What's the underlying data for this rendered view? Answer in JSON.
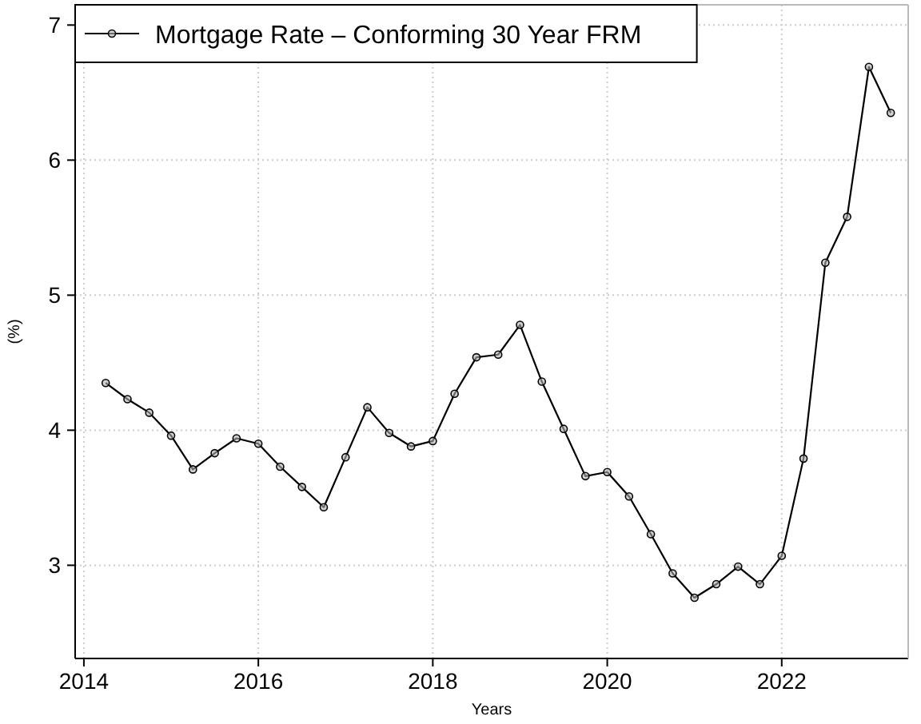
{
  "chart_data": {
    "type": "line",
    "xlabel": "Years",
    "ylabel": "(%)",
    "x": [
      2014.25,
      2014.5,
      2014.75,
      2015,
      2015.25,
      2015.5,
      2015.75,
      2016,
      2016.25,
      2016.5,
      2016.75,
      2017,
      2017.25,
      2017.5,
      2017.75,
      2018,
      2018.25,
      2018.5,
      2018.75,
      2019,
      2019.25,
      2019.5,
      2019.75,
      2020,
      2020.25,
      2020.5,
      2020.75,
      2021,
      2021.25,
      2021.5,
      2021.75,
      2022,
      2022.25,
      2022.5,
      2022.75,
      2023,
      2023.25
    ],
    "series": [
      {
        "name": "Mortgage Rate – Conforming 30 Year FRM",
        "color": "#000000",
        "values": [
          4.35,
          4.23,
          4.13,
          3.96,
          3.71,
          3.83,
          3.94,
          3.9,
          3.73,
          3.58,
          3.43,
          3.8,
          4.17,
          3.98,
          3.88,
          3.92,
          4.27,
          4.54,
          4.56,
          4.78,
          4.36,
          4.01,
          3.66,
          3.69,
          3.51,
          3.23,
          2.94,
          2.76,
          2.86,
          2.99,
          2.86,
          3.07,
          3.79,
          5.24,
          5.58,
          6.69,
          6.35
        ]
      }
    ],
    "xlim": [
      2013.9,
      2023.45
    ],
    "ylim": [
      2.31,
      7.15
    ],
    "xticks": [
      2014,
      2016,
      2018,
      2020,
      2022
    ],
    "yticks": [
      3,
      4,
      5,
      6,
      7
    ],
    "grid": true,
    "legend": "top left",
    "marker": "circle",
    "line_style": "solid"
  }
}
